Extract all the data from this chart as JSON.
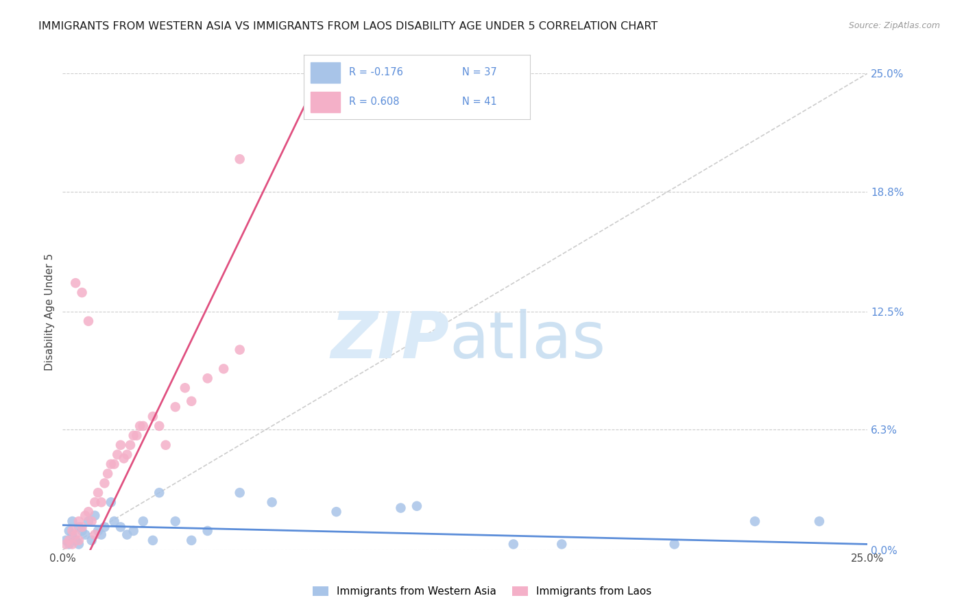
{
  "title": "IMMIGRANTS FROM WESTERN ASIA VS IMMIGRANTS FROM LAOS DISABILITY AGE UNDER 5 CORRELATION CHART",
  "source": "Source: ZipAtlas.com",
  "ylabel": "Disability Age Under 5",
  "xlim": [
    0,
    25
  ],
  "ylim": [
    0,
    25
  ],
  "yticks_right": [
    25.0,
    18.8,
    12.5,
    6.3,
    0.0
  ],
  "blue_color": "#a8c4e8",
  "pink_color": "#f4b0c8",
  "blue_line_color": "#5b8dd9",
  "pink_line_color": "#e05080",
  "right_axis_color": "#5b8dd9",
  "legend_text_color": "#5b8dd9",
  "legend_R_color": "#333333",
  "legend_label_blue": "Immigrants from Western Asia",
  "legend_label_pink": "Immigrants from Laos",
  "wa_x": [
    0.1,
    0.2,
    0.2,
    0.3,
    0.3,
    0.4,
    0.5,
    0.5,
    0.6,
    0.7,
    0.8,
    0.9,
    1.0,
    1.1,
    1.2,
    1.3,
    1.5,
    1.6,
    1.8,
    2.0,
    2.2,
    2.5,
    2.8,
    3.0,
    3.5,
    4.0,
    4.5,
    5.5,
    6.5,
    8.5,
    10.5,
    14.0,
    19.0,
    21.5,
    23.5,
    11.0,
    15.5
  ],
  "wa_y": [
    0.5,
    1.0,
    0.3,
    0.8,
    1.5,
    0.5,
    1.2,
    0.3,
    1.0,
    0.8,
    1.5,
    0.5,
    1.8,
    1.0,
    0.8,
    1.2,
    2.5,
    1.5,
    1.2,
    0.8,
    1.0,
    1.5,
    0.5,
    3.0,
    1.5,
    0.5,
    1.0,
    3.0,
    2.5,
    2.0,
    2.2,
    0.3,
    0.3,
    1.5,
    1.5,
    2.3,
    0.3
  ],
  "laos_x": [
    0.1,
    0.2,
    0.3,
    0.3,
    0.4,
    0.5,
    0.5,
    0.6,
    0.7,
    0.8,
    0.9,
    1.0,
    1.0,
    1.1,
    1.2,
    1.3,
    1.4,
    1.5,
    1.6,
    1.7,
    1.8,
    1.9,
    2.0,
    2.1,
    2.2,
    2.3,
    2.4,
    2.5,
    2.8,
    3.0,
    3.2,
    3.5,
    3.8,
    4.0,
    4.5,
    5.0,
    5.5,
    0.4,
    0.6,
    0.8,
    5.5
  ],
  "laos_y": [
    0.3,
    0.5,
    1.0,
    0.3,
    0.8,
    1.5,
    0.5,
    1.2,
    1.8,
    2.0,
    1.5,
    2.5,
    0.8,
    3.0,
    2.5,
    3.5,
    4.0,
    4.5,
    4.5,
    5.0,
    5.5,
    4.8,
    5.0,
    5.5,
    6.0,
    6.0,
    6.5,
    6.5,
    7.0,
    6.5,
    5.5,
    7.5,
    8.5,
    7.8,
    9.0,
    9.5,
    10.5,
    14.0,
    13.5,
    12.0,
    20.5
  ]
}
